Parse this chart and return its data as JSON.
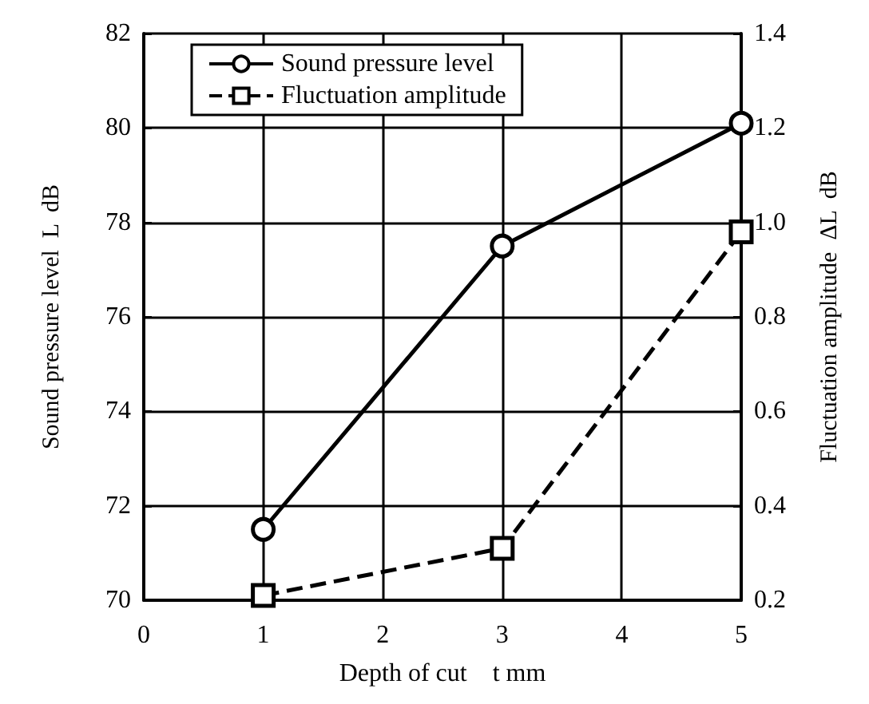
{
  "chart_data": {
    "type": "line",
    "xlabel": "Depth of cut　t mm",
    "ylabel": "Sound pressure level  L  dB",
    "y2label": "Fluctuation amplitude  ΔL  dB",
    "x": [
      1,
      3,
      5
    ],
    "xlim": [
      0,
      5
    ],
    "xticks": [
      0,
      1,
      2,
      3,
      4,
      5
    ],
    "ylim": [
      70,
      82
    ],
    "yticks": [
      70,
      72,
      74,
      76,
      78,
      80,
      82
    ],
    "y2lim": [
      0.2,
      1.4
    ],
    "y2ticks": [
      {
        "value": 0.2,
        "label": "0.2"
      },
      {
        "value": 0.4,
        "label": "0.4"
      },
      {
        "value": 0.6,
        "label": "0.6"
      },
      {
        "value": 0.8,
        "label": "0.8"
      },
      {
        "value": 1.0,
        "label": "1.0"
      },
      {
        "value": 1.2,
        "label": "1.2"
      },
      {
        "value": 1.4,
        "label": "1.4"
      }
    ],
    "grid": true,
    "legend": "top left",
    "series": [
      {
        "name": "Sound pressure level",
        "color": "#000000",
        "values": [
          71.5,
          77.5,
          80.1
        ],
        "marker": "circle",
        "line_style": "solid"
      },
      {
        "name": "Fluctuation amplitude",
        "color": "#000000",
        "values": [
          0.21,
          0.31,
          0.98
        ],
        "marker": "square",
        "line_style": "dashed",
        "axis": "y2"
      }
    ]
  }
}
